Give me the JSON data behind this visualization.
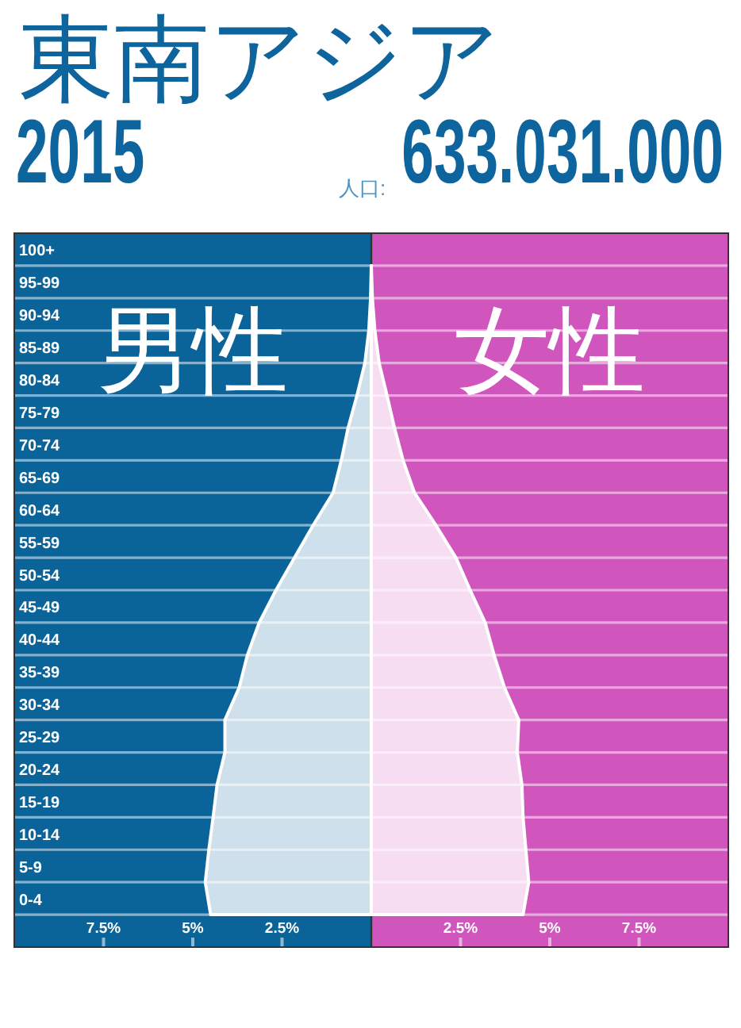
{
  "chart_data": {
    "type": "area",
    "orientation": "horizontal",
    "title": "東南アジア",
    "subtitle": "2015",
    "annotations": [
      "人口:",
      "633.031.000"
    ],
    "categories": [
      "100+",
      "95-99",
      "90-94",
      "85-89",
      "80-84",
      "75-79",
      "70-74",
      "65-69",
      "60-64",
      "55-59",
      "50-54",
      "45-49",
      "40-44",
      "35-39",
      "30-34",
      "25-29",
      "20-24",
      "15-19",
      "10-14",
      "5-9",
      "0-4"
    ],
    "series": [
      {
        "name": "男性",
        "color": "#cde0eb",
        "values": [
          0,
          -0.02,
          -0.07,
          -0.18,
          -0.4,
          -0.65,
          -0.84,
          -1.07,
          -1.63,
          -2.15,
          -2.67,
          -3.14,
          -3.47,
          -3.7,
          -4.1,
          -4.1,
          -4.32,
          -4.43,
          -4.55,
          -4.65,
          -4.5
        ]
      },
      {
        "name": "女性",
        "color": "#f6ddf2",
        "values": [
          0,
          0.03,
          0.1,
          0.22,
          0.44,
          0.65,
          0.89,
          1.21,
          1.81,
          2.37,
          2.77,
          3.19,
          3.44,
          3.73,
          4.13,
          4.09,
          4.22,
          4.25,
          4.33,
          4.41,
          4.25
        ]
      }
    ],
    "xlim": [
      -10,
      10
    ],
    "xticks": [
      {
        "value": -7.5,
        "label": "7.5%"
      },
      {
        "value": -5,
        "label": "5%"
      },
      {
        "value": -2.5,
        "label": "2.5%"
      },
      {
        "value": 2.5,
        "label": "2.5%"
      },
      {
        "value": 5,
        "label": "5%"
      },
      {
        "value": 7.5,
        "label": "7.5%"
      }
    ],
    "bands": [
      {
        "axis": "x",
        "from": -10,
        "to": 0,
        "color": "#0a6399"
      },
      {
        "axis": "x",
        "from": 0,
        "to": 10,
        "color": "#d055bd"
      }
    ],
    "grid": "y"
  }
}
